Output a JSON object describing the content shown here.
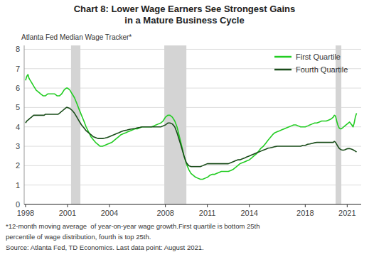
{
  "chart_data": {
    "type": "line",
    "title": "Chart 8: Lower Wage Earners See Strongest Gains\nin a Mature Business Cycle",
    "y_label": "Atlanta Fed Median Wage Tracker*",
    "annotations": [
      "*12-month moving average  of year-on-year wage growth.First quartile is bottom 25th",
      "percentile of wage distribution, fourth is top 25th.",
      "Source: Atlanta Fed, TD Economics. Last data point: August 2021."
    ],
    "xlim": [
      1997.9,
      2022.0
    ],
    "xticks": [
      1998,
      2001,
      2004,
      2008,
      2011,
      2014,
      2018,
      2021
    ],
    "ylim": [
      0,
      8.2
    ],
    "yticks": [
      0,
      1,
      2,
      3,
      4,
      5,
      6,
      7,
      8
    ],
    "grid": true,
    "legend": "upper right",
    "recession_bands": [
      [
        2001.25,
        2001.92
      ],
      [
        2007.92,
        2009.5
      ],
      [
        2020.17,
        2020.58
      ]
    ],
    "series": [
      {
        "name": "First Quartile",
        "color": "#22cc22",
        "x": [
          1998.0,
          1998.08,
          1998.17,
          1998.25,
          1998.33,
          1998.42,
          1998.5,
          1998.58,
          1998.67,
          1998.75,
          1998.83,
          1998.92,
          1999.0,
          1999.08,
          1999.17,
          1999.25,
          1999.33,
          1999.42,
          1999.5,
          1999.58,
          1999.67,
          1999.75,
          1999.83,
          1999.92,
          2000.0,
          2000.08,
          2000.17,
          2000.25,
          2000.33,
          2000.42,
          2000.5,
          2000.58,
          2000.67,
          2000.75,
          2000.83,
          2000.92,
          2001.0,
          2001.17,
          2001.33,
          2001.5,
          2001.67,
          2001.83,
          2002.0,
          2002.17,
          2002.33,
          2002.5,
          2002.67,
          2002.83,
          2003.0,
          2003.17,
          2003.33,
          2003.5,
          2003.67,
          2003.83,
          2004.0,
          2004.17,
          2004.33,
          2004.5,
          2004.67,
          2004.83,
          2005.0,
          2005.17,
          2005.33,
          2005.5,
          2005.67,
          2005.83,
          2006.0,
          2006.17,
          2006.33,
          2006.5,
          2006.67,
          2006.83,
          2007.0,
          2007.17,
          2007.33,
          2007.5,
          2007.67,
          2007.83,
          2008.0,
          2008.17,
          2008.33,
          2008.5,
          2008.67,
          2008.83,
          2009.0,
          2009.17,
          2009.33,
          2009.5,
          2009.67,
          2009.83,
          2010.0,
          2010.17,
          2010.33,
          2010.5,
          2010.67,
          2010.83,
          2011.0,
          2011.17,
          2011.33,
          2011.5,
          2011.67,
          2011.83,
          2012.0,
          2012.17,
          2012.33,
          2012.5,
          2012.67,
          2012.83,
          2013.0,
          2013.17,
          2013.33,
          2013.5,
          2013.67,
          2013.83,
          2014.0,
          2014.17,
          2014.33,
          2014.5,
          2014.67,
          2014.83,
          2015.0,
          2015.17,
          2015.33,
          2015.5,
          2015.67,
          2015.83,
          2016.0,
          2016.17,
          2016.33,
          2016.5,
          2016.67,
          2016.83,
          2017.0,
          2017.17,
          2017.33,
          2017.5,
          2017.67,
          2017.83,
          2018.0,
          2018.17,
          2018.33,
          2018.5,
          2018.67,
          2018.83,
          2019.0,
          2019.17,
          2019.33,
          2019.5,
          2019.67,
          2019.83,
          2020.0,
          2020.08,
          2020.17,
          2020.25,
          2020.33,
          2020.42,
          2020.5,
          2020.58,
          2020.67,
          2020.75,
          2020.83,
          2020.92,
          2021.0,
          2021.08,
          2021.17,
          2021.33,
          2021.42,
          2021.5,
          2021.58,
          2021.67
        ],
        "values": [
          6.4,
          6.6,
          6.7,
          6.5,
          6.4,
          6.3,
          6.2,
          6.1,
          6.0,
          5.9,
          5.85,
          5.8,
          5.75,
          5.7,
          5.65,
          5.6,
          5.6,
          5.6,
          5.65,
          5.7,
          5.7,
          5.7,
          5.7,
          5.7,
          5.7,
          5.7,
          5.65,
          5.6,
          5.6,
          5.6,
          5.65,
          5.7,
          5.8,
          5.9,
          5.95,
          6.0,
          6.0,
          5.9,
          5.7,
          5.5,
          5.2,
          4.9,
          4.6,
          4.3,
          4.0,
          3.75,
          3.5,
          3.35,
          3.2,
          3.1,
          3.0,
          3.0,
          3.05,
          3.1,
          3.15,
          3.2,
          3.3,
          3.4,
          3.5,
          3.6,
          3.65,
          3.7,
          3.75,
          3.8,
          3.85,
          3.9,
          3.9,
          3.95,
          4.0,
          4.0,
          4.0,
          4.0,
          4.0,
          4.05,
          4.1,
          4.15,
          4.2,
          4.3,
          4.5,
          4.6,
          4.6,
          4.5,
          4.3,
          4.0,
          3.5,
          3.0,
          2.5,
          2.1,
          1.8,
          1.6,
          1.5,
          1.4,
          1.35,
          1.3,
          1.3,
          1.35,
          1.4,
          1.5,
          1.55,
          1.55,
          1.6,
          1.65,
          1.7,
          1.7,
          1.7,
          1.7,
          1.75,
          1.8,
          1.9,
          2.0,
          2.1,
          2.15,
          2.2,
          2.25,
          2.3,
          2.4,
          2.5,
          2.6,
          2.75,
          2.9,
          3.0,
          3.15,
          3.3,
          3.45,
          3.6,
          3.7,
          3.75,
          3.8,
          3.85,
          3.9,
          3.95,
          4.0,
          4.05,
          4.1,
          4.1,
          4.05,
          4.0,
          4.0,
          4.0,
          4.05,
          4.1,
          4.15,
          4.2,
          4.2,
          4.25,
          4.3,
          4.3,
          4.3,
          4.35,
          4.4,
          4.5,
          4.6,
          4.55,
          4.3,
          4.1,
          3.95,
          3.9,
          3.9,
          3.95,
          4.0,
          4.05,
          4.1,
          4.15,
          4.2,
          4.25,
          4.1,
          4.0,
          4.2,
          4.5,
          4.7
        ]
      },
      {
        "name": "Fourth Quartile",
        "color": "#1a4d1a",
        "x": [
          1998.0,
          1998.08,
          1998.17,
          1998.25,
          1998.33,
          1998.42,
          1998.5,
          1998.58,
          1998.67,
          1998.75,
          1998.83,
          1998.92,
          1999.0,
          1999.08,
          1999.17,
          1999.25,
          1999.33,
          1999.42,
          1999.5,
          1999.58,
          1999.67,
          1999.75,
          1999.83,
          1999.92,
          2000.0,
          2000.08,
          2000.17,
          2000.25,
          2000.33,
          2000.42,
          2000.5,
          2000.58,
          2000.67,
          2000.75,
          2000.83,
          2000.92,
          2001.0,
          2001.17,
          2001.33,
          2001.5,
          2001.67,
          2001.83,
          2002.0,
          2002.17,
          2002.33,
          2002.5,
          2002.67,
          2002.83,
          2003.0,
          2003.17,
          2003.33,
          2003.5,
          2003.67,
          2003.83,
          2004.0,
          2004.17,
          2004.33,
          2004.5,
          2004.67,
          2004.83,
          2005.0,
          2005.17,
          2005.33,
          2005.5,
          2005.67,
          2005.83,
          2006.0,
          2006.17,
          2006.33,
          2006.5,
          2006.67,
          2006.83,
          2007.0,
          2007.17,
          2007.33,
          2007.5,
          2007.67,
          2007.83,
          2008.0,
          2008.17,
          2008.33,
          2008.5,
          2008.67,
          2008.83,
          2009.0,
          2009.17,
          2009.33,
          2009.5,
          2009.67,
          2009.83,
          2010.0,
          2010.17,
          2010.33,
          2010.5,
          2010.67,
          2010.83,
          2011.0,
          2011.17,
          2011.33,
          2011.5,
          2011.67,
          2011.83,
          2012.0,
          2012.17,
          2012.33,
          2012.5,
          2012.67,
          2012.83,
          2013.0,
          2013.17,
          2013.33,
          2013.5,
          2013.67,
          2013.83,
          2014.0,
          2014.17,
          2014.33,
          2014.5,
          2014.67,
          2014.83,
          2015.0,
          2015.17,
          2015.33,
          2015.5,
          2015.67,
          2015.83,
          2016.0,
          2016.17,
          2016.33,
          2016.5,
          2016.67,
          2016.83,
          2017.0,
          2017.17,
          2017.33,
          2017.5,
          2017.67,
          2017.83,
          2018.0,
          2018.17,
          2018.33,
          2018.5,
          2018.67,
          2018.83,
          2019.0,
          2019.17,
          2019.33,
          2019.5,
          2019.67,
          2019.83,
          2020.0,
          2020.08,
          2020.17,
          2020.25,
          2020.33,
          2020.42,
          2020.5,
          2020.58,
          2020.67,
          2020.75,
          2020.83,
          2020.92,
          2021.0,
          2021.08,
          2021.17,
          2021.33,
          2021.42,
          2021.5,
          2021.58,
          2021.67
        ],
        "values": [
          4.2,
          4.3,
          4.35,
          4.4,
          4.45,
          4.5,
          4.55,
          4.6,
          4.6,
          4.6,
          4.6,
          4.6,
          4.6,
          4.6,
          4.6,
          4.6,
          4.6,
          4.65,
          4.65,
          4.65,
          4.65,
          4.65,
          4.65,
          4.65,
          4.65,
          4.65,
          4.65,
          4.65,
          4.65,
          4.7,
          4.75,
          4.8,
          4.85,
          4.9,
          4.95,
          5.0,
          5.0,
          4.95,
          4.85,
          4.7,
          4.5,
          4.3,
          4.1,
          3.95,
          3.8,
          3.7,
          3.6,
          3.5,
          3.45,
          3.4,
          3.4,
          3.4,
          3.42,
          3.45,
          3.5,
          3.55,
          3.6,
          3.65,
          3.7,
          3.75,
          3.8,
          3.82,
          3.85,
          3.88,
          3.9,
          3.92,
          3.95,
          3.97,
          4.0,
          4.0,
          4.0,
          4.0,
          4.0,
          4.0,
          4.0,
          4.0,
          4.0,
          4.05,
          4.1,
          4.2,
          4.2,
          4.15,
          4.0,
          3.7,
          3.3,
          2.9,
          2.5,
          2.15,
          2.0,
          1.95,
          1.95,
          1.95,
          1.95,
          1.95,
          2.0,
          2.05,
          2.1,
          2.1,
          2.1,
          2.1,
          2.1,
          2.1,
          2.1,
          2.1,
          2.1,
          2.1,
          2.15,
          2.2,
          2.25,
          2.3,
          2.3,
          2.35,
          2.4,
          2.45,
          2.5,
          2.55,
          2.6,
          2.65,
          2.7,
          2.75,
          2.8,
          2.85,
          2.9,
          2.92,
          2.95,
          2.98,
          3.0,
          3.0,
          3.0,
          3.0,
          3.0,
          3.0,
          3.0,
          3.0,
          3.0,
          3.0,
          3.0,
          3.05,
          3.05,
          3.1,
          3.12,
          3.15,
          3.18,
          3.2,
          3.2,
          3.2,
          3.2,
          3.2,
          3.2,
          3.2,
          3.2,
          3.25,
          3.2,
          3.1,
          3.0,
          2.9,
          2.85,
          2.82,
          2.8,
          2.8,
          2.82,
          2.85,
          2.87,
          2.88,
          2.88,
          2.85,
          2.82,
          2.78,
          2.75,
          2.7
        ]
      }
    ]
  }
}
